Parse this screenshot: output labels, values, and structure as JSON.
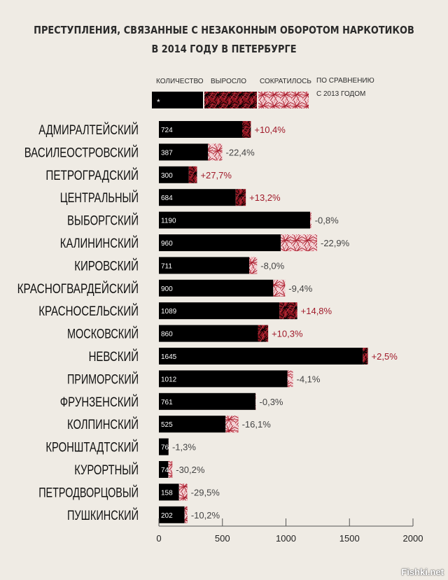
{
  "title_lines": [
    "ПРЕСТУПЛЕНИЯ, СВЯЗАННЫЕ С НЕЗАКОННЫМ ОБОРОТОМ НАРКОТИКОВ",
    "В 2014 ГОДУ В ПЕТЕРБУРГЕ"
  ],
  "legend": {
    "count": "КОЛИЧЕСТВО",
    "count_marker": "*",
    "increased": "ВЫРОСЛО",
    "decreased": "СОКРАТИЛОСЬ",
    "note_line1": "ПО СРАВНЕНИЮ",
    "note_line2": "С 2013 ГОДОМ"
  },
  "colors": {
    "background": "#efebe4",
    "bar": "#000000",
    "increase": "#8b1520",
    "increase_text": "#a01a2a",
    "decrease": "#f0c8cc",
    "decrease_text": "#444444",
    "axis": "#555555"
  },
  "watermark": "Fishki.net",
  "chart_data": {
    "type": "bar",
    "orientation": "horizontal",
    "xlim": [
      0,
      2000
    ],
    "x_ticks": [
      0,
      500,
      1000,
      1500,
      2000
    ],
    "grid": false,
    "categories": [
      "АДМИРАЛТЕЙСКИЙ",
      "ВАСИЛЕОСТРОВСКИЙ",
      "ПЕТРОГРАДСКИЙ",
      "ЦЕНТРАЛЬНЫЙ",
      "ВЫБОРГСКИЙ",
      "КАЛИНИНСКИЙ",
      "КИРОВСКИЙ",
      "КРАСНОГВАРДЕЙСКИЙ",
      "КРАСНОСЕЛЬСКИЙ",
      "МОСКОВСКИЙ",
      "НЕВСКИЙ",
      "ПРИМОРСКИЙ",
      "ФРУНЗЕНСКИЙ",
      "КОЛПИНСКИЙ",
      "КРОНШТАДТСКИЙ",
      "КУРОРТНЫЙ",
      "ПЕТРОДВОРЦОВЫЙ",
      "ПУШКИНСКИЙ"
    ],
    "values": [
      724,
      387,
      300,
      684,
      1190,
      960,
      711,
      900,
      1089,
      860,
      1645,
      1012,
      761,
      525,
      76,
      74,
      158,
      202
    ],
    "value_labels": [
      "724",
      "387",
      "300",
      "684",
      "1190",
      "960",
      "711",
      "900",
      "1089",
      "860",
      "1645",
      "1012",
      "761",
      "525",
      "76",
      "74",
      "158",
      "202"
    ],
    "change_pct": [
      10.4,
      -22.4,
      27.7,
      13.2,
      -0.8,
      -22.9,
      -8.0,
      -9.4,
      14.8,
      10.3,
      2.5,
      -4.1,
      -0.3,
      -16.1,
      -1.3,
      -30.2,
      -29.5,
      -10.2
    ],
    "change_labels": [
      "+10,4%",
      "-22,4%",
      "+27,7%",
      "+13,2%",
      "-0,8%",
      "-22,9%",
      "-8,0%",
      "-9,4%",
      "+14,8%",
      "+10,3%",
      "+2,5%",
      "-4,1%",
      "-0,3%",
      "-16,1%",
      "-1,3%",
      "-30,2%",
      "-29,5%",
      "-10,2%"
    ]
  }
}
